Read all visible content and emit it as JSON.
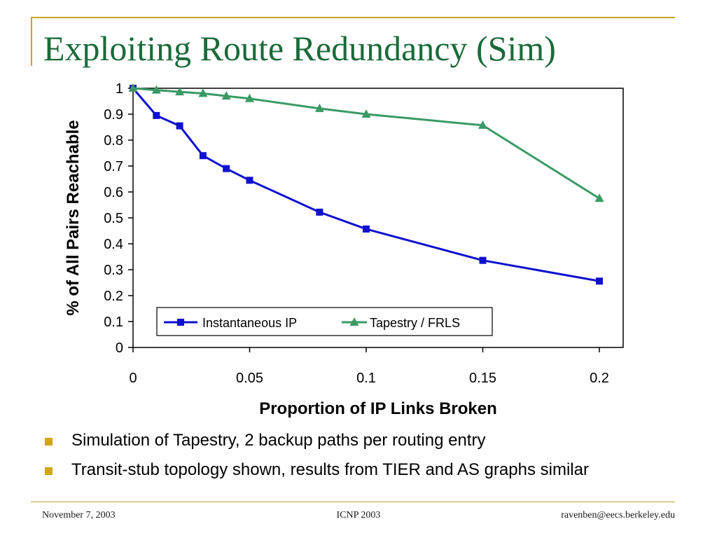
{
  "slide": {
    "title": "Exploiting Route Redundancy (Sim)",
    "bullets": [
      "Simulation of Tapestry, 2 backup paths per routing entry",
      "Transit-stub topology shown, results from TIER and AS graphs similar"
    ],
    "footer": {
      "left": "November 7, 2003",
      "center": "ICNP 2003",
      "right": "ravenben@eecs.berkeley.edu"
    },
    "colors": {
      "title": "#1a6b3a",
      "accent": "#c8a228",
      "bullet": "#d4a418"
    }
  },
  "chart_data": {
    "type": "line",
    "xlabel": "Proportion of IP Links Broken",
    "ylabel": "% of All Pairs Reachable",
    "xlim": [
      0,
      0.21
    ],
    "ylim": [
      0,
      1
    ],
    "x_ticks": [
      "0",
      "0.05",
      "0.1",
      "0.15",
      "0.2"
    ],
    "x_tick_values": [
      0,
      0.05,
      0.1,
      0.15,
      0.2
    ],
    "y_ticks": [
      "0",
      "0.1",
      "0.2",
      "0.3",
      "0.4",
      "0.5",
      "0.6",
      "0.7",
      "0.8",
      "0.9",
      "1"
    ],
    "y_tick_values": [
      0,
      0.1,
      0.2,
      0.3,
      0.4,
      0.5,
      0.6,
      0.7,
      0.8,
      0.9,
      1
    ],
    "grid": false,
    "legend_position": "bottom-right",
    "series": [
      {
        "name": "Instantaneous IP",
        "color": "#1010d0",
        "marker": "square",
        "x": [
          0,
          0.01,
          0.02,
          0.03,
          0.04,
          0.05,
          0.08,
          0.1,
          0.15,
          0.2
        ],
        "y": [
          1.0,
          0.895,
          0.855,
          0.74,
          0.69,
          0.645,
          0.522,
          0.457,
          0.336,
          0.256
        ]
      },
      {
        "name": "Tapestry / FRLS",
        "color": "#3a9a64",
        "marker": "triangle",
        "x": [
          0,
          0.01,
          0.02,
          0.03,
          0.04,
          0.05,
          0.08,
          0.1,
          0.15,
          0.2
        ],
        "y": [
          1.0,
          0.993,
          0.986,
          0.98,
          0.97,
          0.96,
          0.922,
          0.9,
          0.857,
          0.575
        ]
      }
    ]
  }
}
